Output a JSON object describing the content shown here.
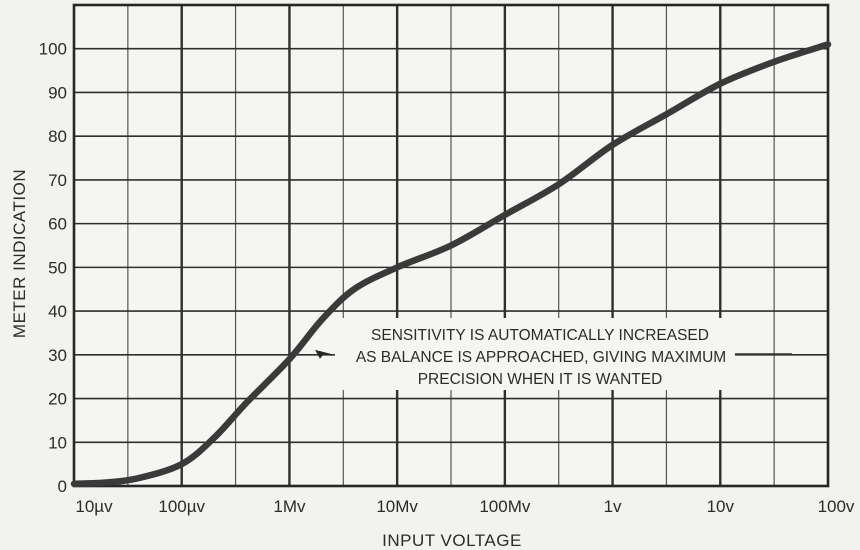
{
  "chart_data": {
    "type": "line",
    "title": "",
    "xlabel": "INPUT VOLTAGE",
    "ylabel": "METER INDICATION",
    "x_scale": "log",
    "x_ticks": [
      "10µv",
      "100µv",
      "1Mv",
      "10Mv",
      "100Mv",
      "1v",
      "10v",
      "100v"
    ],
    "y_ticks": [
      "0",
      "10",
      "20",
      "30",
      "40",
      "50",
      "60",
      "70",
      "80",
      "90",
      "100"
    ],
    "ylim": [
      0,
      100
    ],
    "grid": true,
    "line_color": "#3a3a3a",
    "series": [
      {
        "name": "",
        "x_decade_index": [
          0,
          0.3,
          0.6,
          1.0,
          1.3,
          1.6,
          2.0,
          2.3,
          2.6,
          3.0,
          3.5,
          4.0,
          4.5,
          5.0,
          5.5,
          6.0,
          6.5,
          7.0
        ],
        "y": [
          0.5,
          0.8,
          1.8,
          5,
          11,
          19,
          29,
          38,
          45,
          50,
          55,
          62,
          69,
          78,
          85,
          92,
          97,
          101
        ]
      }
    ],
    "annotation": {
      "lines": [
        "SENSITIVITY IS AUTOMATICALLY INCREASED",
        "AS BALANCE IS APPROACHED, GIVING MAXIMUM",
        "PRECISION WHEN IT IS WANTED"
      ],
      "arrow_target_decade_index": 2.2,
      "arrow_target_y": 33
    }
  }
}
